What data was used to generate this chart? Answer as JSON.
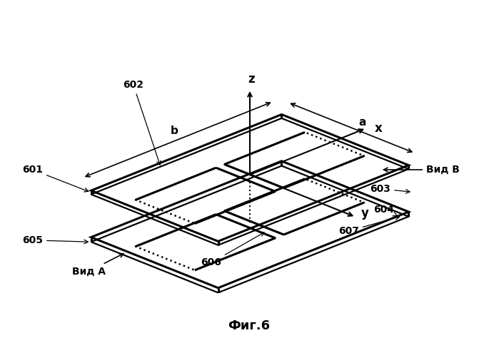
{
  "bg_color": "#ffffff",
  "fig_label": "Фиг.6",
  "vid_a": "Вид A",
  "vid_b": "Вид B",
  "lw_thick": 2.2,
  "lw_med": 1.6,
  "lw_thin": 1.0,
  "label_601": "601",
  "label_602": "602",
  "label_603": "603",
  "label_604": "604",
  "label_605": "605",
  "label_606": "606",
  "label_607": "607"
}
